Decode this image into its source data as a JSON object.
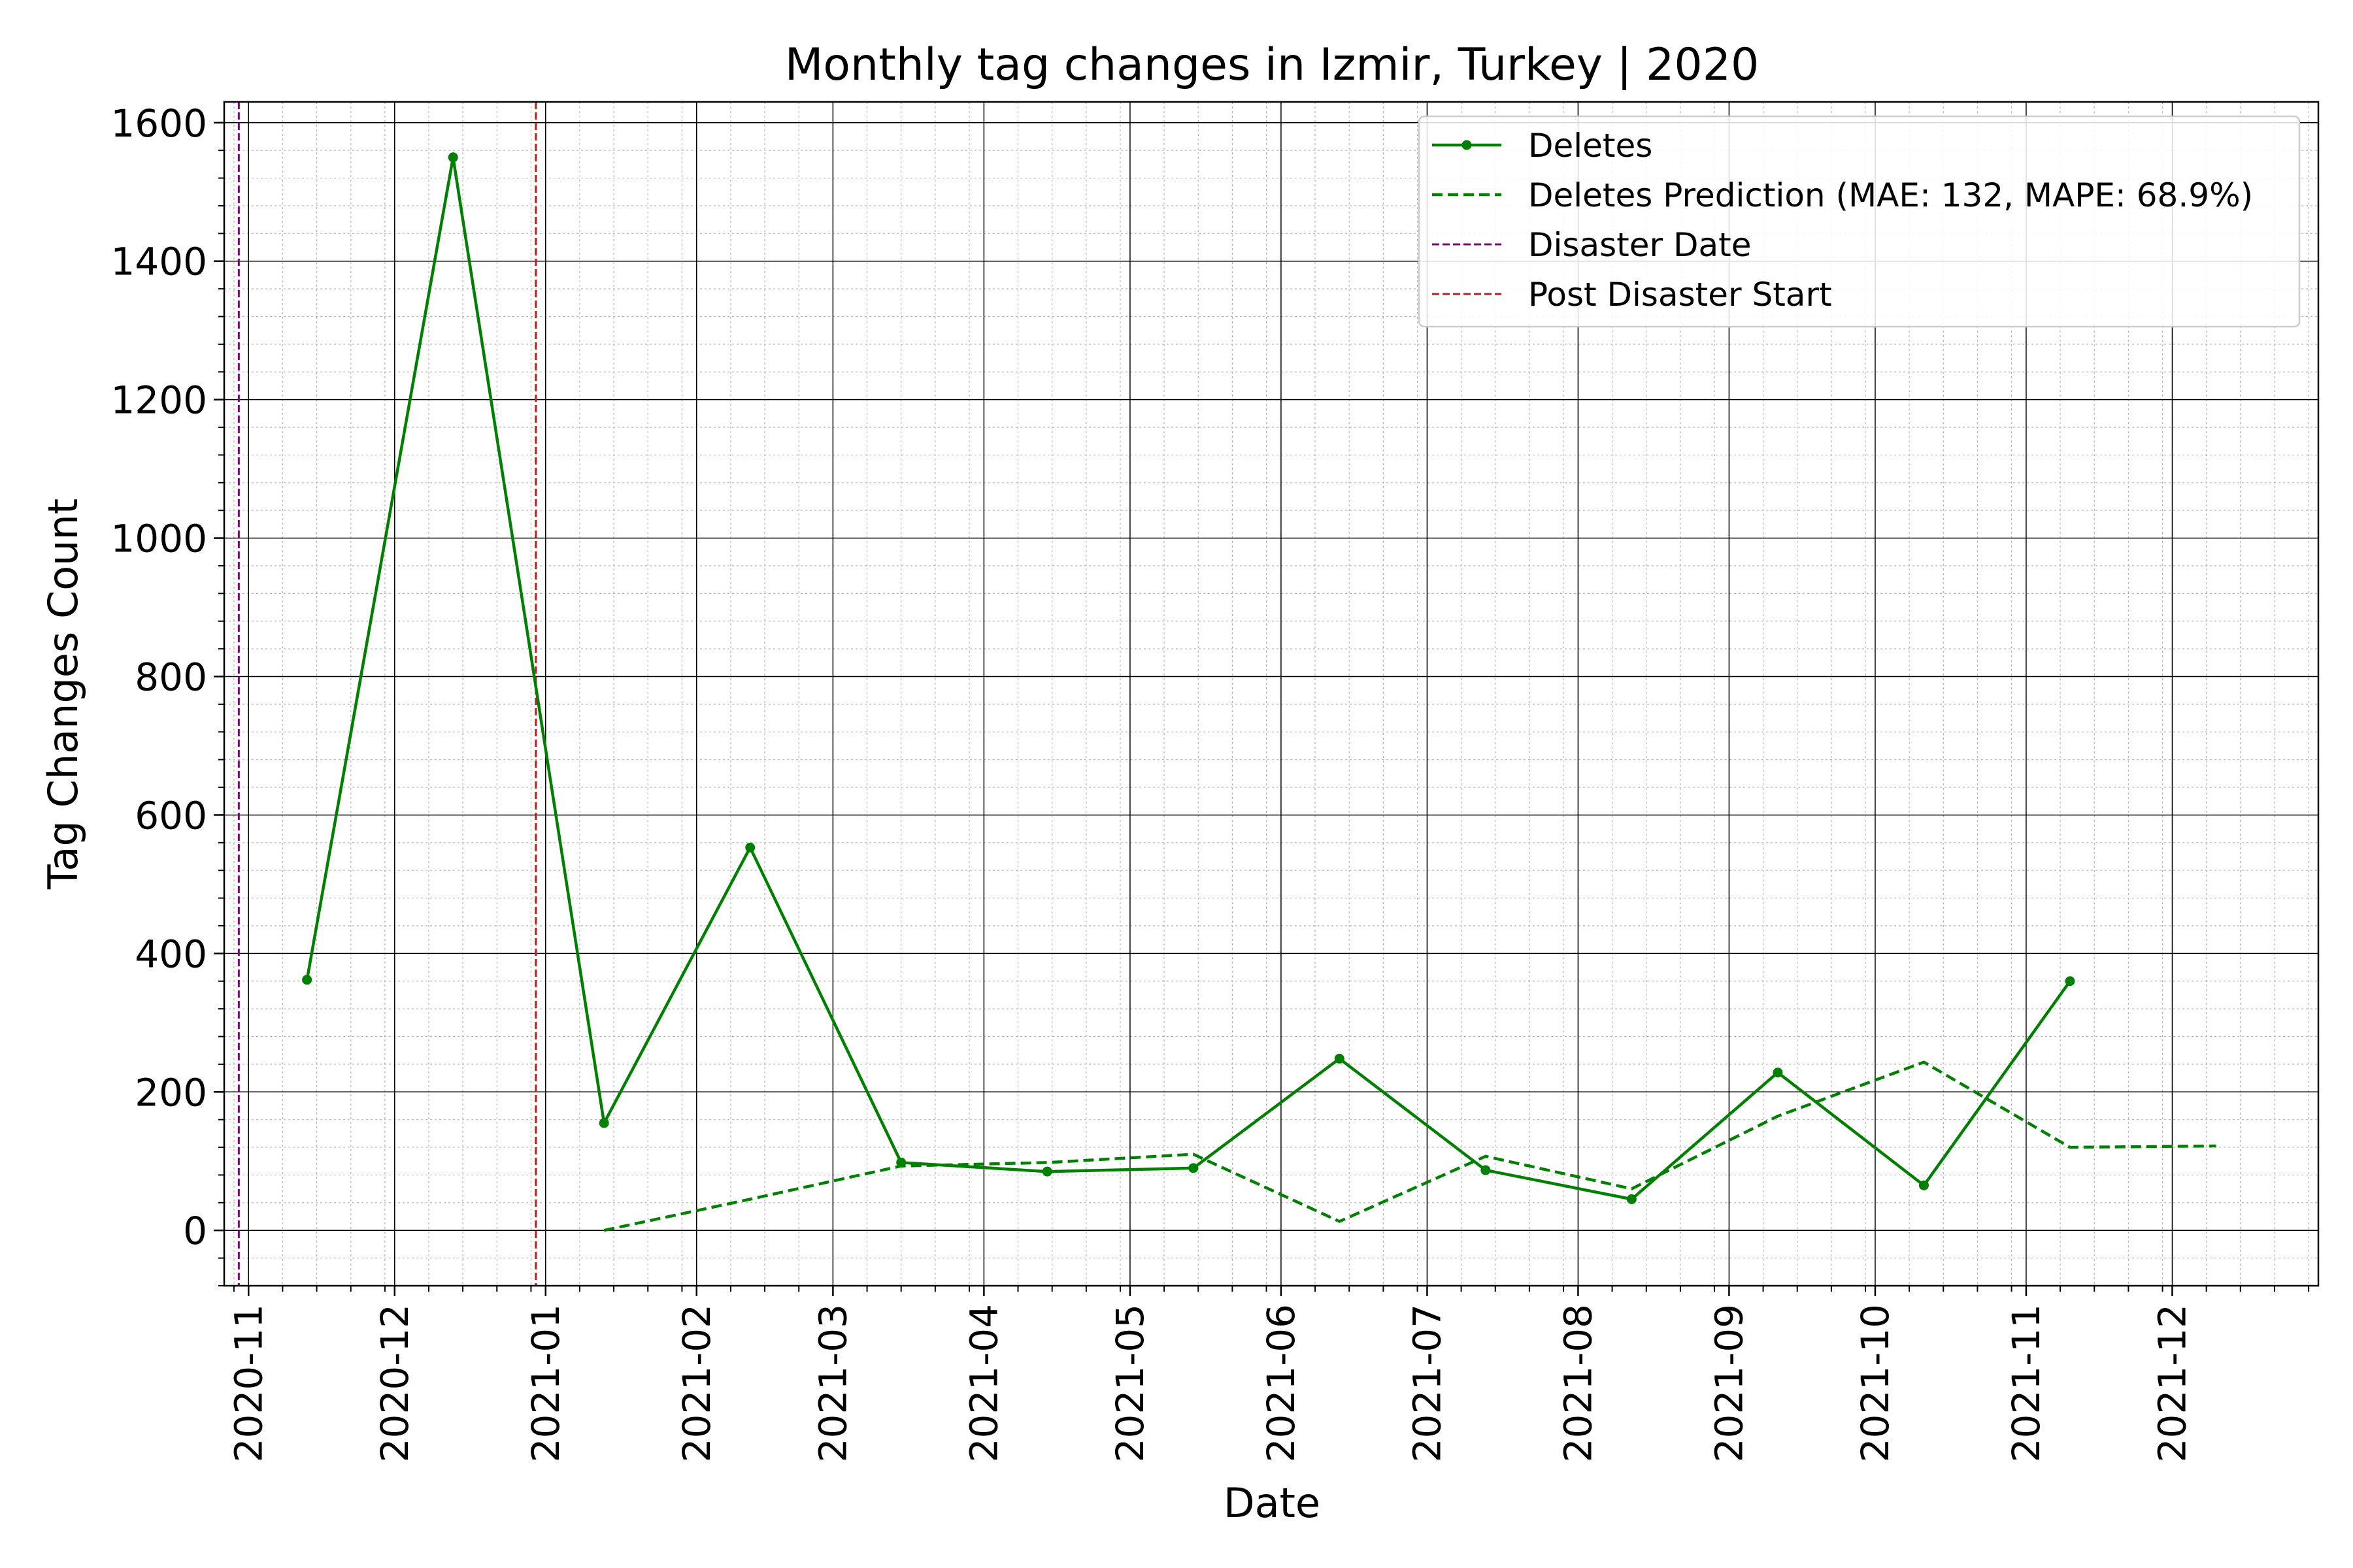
{
  "chart_data": {
    "type": "line",
    "title": "Monthly tag changes in Izmir, Turkey | 2020",
    "xlabel": "Date",
    "ylabel": "Tag Changes Count",
    "x_range": [
      "2020-10-27",
      "2021-12-31"
    ],
    "ylim": [
      -80,
      1630
    ],
    "yticks": [
      0,
      200,
      400,
      600,
      800,
      1000,
      1200,
      1400,
      1600
    ],
    "xticks": [
      "2020-11",
      "2020-12",
      "2021-01",
      "2021-02",
      "2021-03",
      "2021-04",
      "2021-05",
      "2021-06",
      "2021-07",
      "2021-08",
      "2021-09",
      "2021-10",
      "2021-11",
      "2021-12"
    ],
    "grid": true,
    "legend_position": "top-right",
    "series": [
      {
        "name": "Deletes",
        "style": "solid-marker",
        "color": "#008000",
        "points": [
          {
            "x": "2020-11-13",
            "y": 362
          },
          {
            "x": "2020-12-13",
            "y": 1550
          },
          {
            "x": "2021-01-13",
            "y": 155
          },
          {
            "x": "2021-02-12",
            "y": 553
          },
          {
            "x": "2021-03-15",
            "y": 98
          },
          {
            "x": "2021-04-14",
            "y": 85
          },
          {
            "x": "2021-05-14",
            "y": 90
          },
          {
            "x": "2021-06-13",
            "y": 248
          },
          {
            "x": "2021-07-13",
            "y": 87
          },
          {
            "x": "2021-08-12",
            "y": 45
          },
          {
            "x": "2021-09-11",
            "y": 228
          },
          {
            "x": "2021-10-11",
            "y": 65
          },
          {
            "x": "2021-11-10",
            "y": 360
          }
        ]
      },
      {
        "name": "Deletes Prediction (MAE: 132, MAPE: 68.9%)",
        "style": "dashed",
        "color": "#008000",
        "points": [
          {
            "x": "2021-01-13",
            "y": 0
          },
          {
            "x": "2021-02-12",
            "y": 45
          },
          {
            "x": "2021-03-15",
            "y": 93
          },
          {
            "x": "2021-04-14",
            "y": 98
          },
          {
            "x": "2021-05-14",
            "y": 110
          },
          {
            "x": "2021-06-13",
            "y": 13
          },
          {
            "x": "2021-07-13",
            "y": 107
          },
          {
            "x": "2021-08-12",
            "y": 60
          },
          {
            "x": "2021-09-11",
            "y": 165
          },
          {
            "x": "2021-10-11",
            "y": 243
          },
          {
            "x": "2021-11-10",
            "y": 120
          },
          {
            "x": "2021-12-10",
            "y": 122
          }
        ]
      }
    ],
    "vlines": [
      {
        "name": "Disaster Date",
        "x": "2020-10-30",
        "color": "#800080"
      },
      {
        "name": "Post Disaster Start",
        "x": "2020-12-30",
        "color": "#b22222"
      }
    ]
  }
}
